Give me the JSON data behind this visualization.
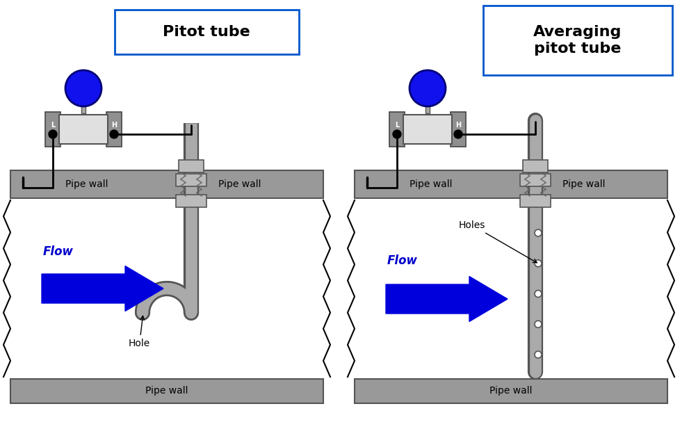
{
  "bg_color": "#ffffff",
  "pipe_wall_color": "#999999",
  "pipe_wall_edge": "#555555",
  "tube_color": "#aaaaaa",
  "tube_edge": "#555555",
  "blue_color": "#0000dd",
  "blue_ball_color": "#1111ee",
  "text_color": "#000000",
  "flow_color": "#0000cc",
  "box_border_color": "#0055cc",
  "title1": "Pitot tube",
  "title2": "Averaging\npitot tube",
  "label_pipe_wall": "Pipe wall",
  "label_hole": "Hole",
  "label_holes": "Holes",
  "label_flow": "Flow",
  "instrument_body_color": "#e0e0e0",
  "port_color": "#888888",
  "wire_color": "#000000"
}
